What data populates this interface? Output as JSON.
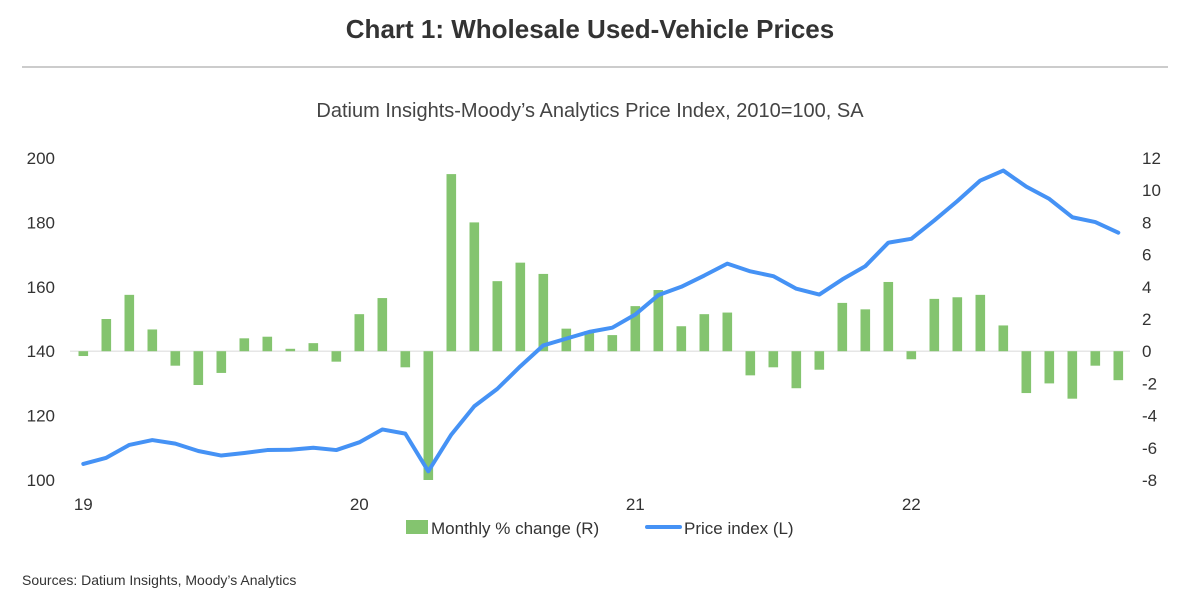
{
  "chart_data": {
    "type": "bar+line",
    "title": "Chart 1: Wholesale Used-Vehicle Prices",
    "subtitle": "Datium Insights-Moody’s Analytics Price Index, 2010=100, SA",
    "source": "Sources: Datium Insights, Moody’s Analytics",
    "x_tick_labels": [
      "19",
      "20",
      "21",
      "22"
    ],
    "x_months": [
      "2019-01",
      "2019-02",
      "2019-03",
      "2019-04",
      "2019-05",
      "2019-06",
      "2019-07",
      "2019-08",
      "2019-09",
      "2019-10",
      "2019-11",
      "2019-12",
      "2020-01",
      "2020-02",
      "2020-03",
      "2020-04",
      "2020-05",
      "2020-06",
      "2020-07",
      "2020-08",
      "2020-09",
      "2020-10",
      "2020-11",
      "2020-12",
      "2021-01",
      "2021-02",
      "2021-03",
      "2021-04",
      "2021-05",
      "2021-06",
      "2021-07",
      "2021-08",
      "2021-09",
      "2021-10",
      "2021-11",
      "2021-12",
      "2022-01",
      "2022-02",
      "2022-03",
      "2022-04",
      "2022-05",
      "2022-06",
      "2022-07",
      "2022-08",
      "2022-09",
      "2022-10"
    ],
    "left_axis": {
      "ylim": [
        100,
        200
      ],
      "ticks": [
        "100",
        "120",
        "140",
        "160",
        "180",
        "200"
      ]
    },
    "right_axis": {
      "ylim": [
        -8,
        12
      ],
      "ticks": [
        "-8",
        "-6",
        "-4",
        "-2",
        "0",
        "2",
        "4",
        "6",
        "8",
        "10",
        "12"
      ]
    },
    "grid": "zero line only",
    "legend_placement": "bottom",
    "series": [
      {
        "name": "Monthly % change (R)",
        "type": "bar",
        "axis": "right",
        "color": "#84c46f",
        "values": [
          -0.3,
          2.0,
          3.5,
          1.35,
          -0.9,
          -2.1,
          -1.35,
          0.8,
          0.9,
          0.15,
          0.5,
          -0.65,
          2.3,
          3.3,
          -1.0,
          -8.0,
          11.0,
          8.0,
          4.35,
          5.5,
          4.8,
          1.4,
          1.25,
          1.0,
          2.8,
          3.8,
          1.55,
          2.3,
          2.4,
          -1.5,
          -1.0,
          -2.3,
          -1.15,
          3.0,
          2.6,
          4.3,
          -0.5,
          3.25,
          3.35,
          3.5,
          1.6,
          -2.6,
          -2.0,
          -2.95,
          -0.9,
          -1.8
        ]
      },
      {
        "name": "Price index (L)",
        "type": "line",
        "axis": "left",
        "color": "#4592f5",
        "values": [
          105.0,
          106.9,
          110.9,
          112.4,
          111.3,
          109.0,
          107.6,
          108.4,
          109.3,
          109.4,
          110.0,
          109.3,
          111.7,
          115.7,
          114.4,
          102.7,
          114.1,
          122.9,
          128.3,
          135.3,
          141.8,
          143.9,
          146.0,
          147.3,
          151.4,
          157.4,
          160.0,
          163.5,
          167.2,
          164.8,
          163.3,
          159.4,
          157.6,
          162.3,
          166.4,
          173.7,
          174.9,
          180.6,
          186.6,
          193.0,
          196.1,
          191.1,
          187.3,
          181.6,
          180.1,
          176.8
        ]
      }
    ]
  }
}
